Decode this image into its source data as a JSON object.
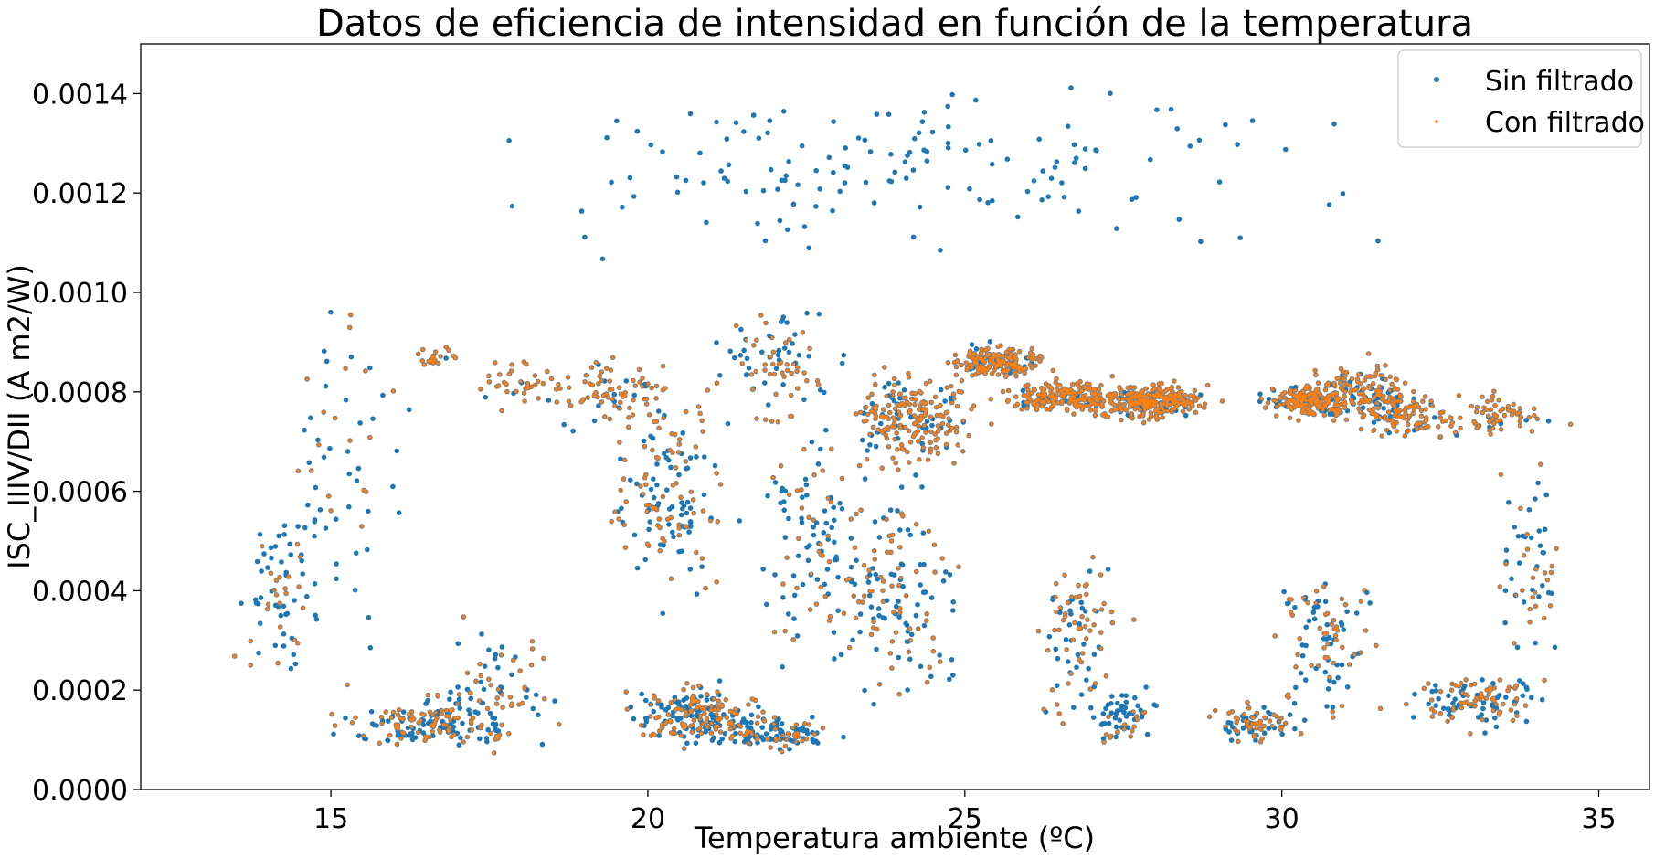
{
  "chart_data": {
    "type": "scatter",
    "title": "Datos de eficiencia de intensidad en función de la temperatura",
    "xlabel": "Temperatura ambiente (ºC)",
    "ylabel": "ISC_IIIV/DII (A m2/W)",
    "xlim": [
      12.0,
      35.8
    ],
    "ylim": [
      0.0,
      0.0015
    ],
    "xticks": [
      15,
      20,
      25,
      30,
      35
    ],
    "xtick_labels": [
      "15",
      "20",
      "25",
      "30",
      "35"
    ],
    "yticks": [
      0.0,
      0.0002,
      0.0004,
      0.0006,
      0.0008,
      0.001,
      0.0012,
      0.0014
    ],
    "ytick_labels": [
      "0.0000",
      "0.0002",
      "0.0004",
      "0.0006",
      "0.0008",
      "0.0010",
      "0.0012",
      "0.0014"
    ],
    "grid": false,
    "legend_position": "top-right",
    "series": [
      {
        "name": "Sin filtrado",
        "color": "#1f77b4",
        "marker": "circle",
        "x_range": [
          13.0,
          34.7
        ],
        "y_range": [
          5e-05,
          0.0015
        ]
      },
      {
        "name": "Con filtrado",
        "color": "#ff7f0e",
        "marker": "small-circle",
        "x_range": [
          13.6,
          34.5
        ],
        "y_range": [
          0.0001,
          0.00091
        ]
      }
    ]
  }
}
